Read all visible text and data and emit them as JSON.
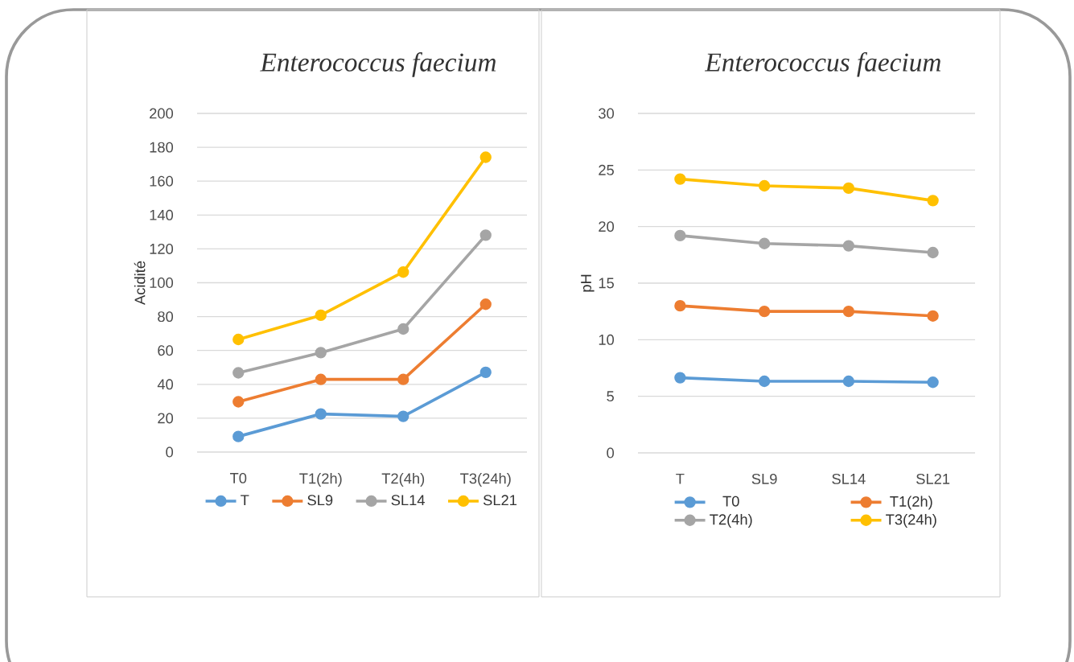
{
  "chart_data": [
    {
      "type": "line",
      "title": "Enterococcus faecium",
      "ylabel": "Acidité",
      "categories": [
        "T0",
        "T1(2h)",
        "T2(4h)",
        "T3(24h)"
      ],
      "series": [
        {
          "name": "T",
          "color": "#5b9bd5",
          "values": [
            9.2,
            22.5,
            21.1,
            47.1
          ]
        },
        {
          "name": "SL9",
          "color": "#ed7d31",
          "values": [
            29.7,
            42.9,
            42.9,
            87.3
          ]
        },
        {
          "name": "SL14",
          "color": "#a5a5a5",
          "values": [
            46.8,
            58.7,
            72.7,
            128.1
          ]
        },
        {
          "name": "SL21",
          "color": "#ffc000",
          "values": [
            66.5,
            80.8,
            106.3,
            174.1
          ]
        }
      ],
      "ylim": [
        0,
        200
      ],
      "yticks": [
        0,
        20,
        40,
        60,
        80,
        100,
        120,
        140,
        160,
        180,
        200
      ],
      "grid": "y",
      "legend": "bottom",
      "marker": "circle",
      "line_style": "solid"
    },
    {
      "type": "line",
      "title": "Enterococcus faecium",
      "ylabel": "pH",
      "categories": [
        "T",
        "SL9",
        "SL14",
        "SL21"
      ],
      "series": [
        {
          "name": "T0",
          "color": "#5b9bd5",
          "values": [
            6.64,
            6.33,
            6.33,
            6.24
          ]
        },
        {
          "name": "T1(2h)",
          "color": "#ed7d31",
          "values": [
            13.0,
            12.5,
            12.5,
            12.1
          ]
        },
        {
          "name": "T2(4h)",
          "color": "#a5a5a5",
          "values": [
            19.2,
            18.5,
            18.3,
            17.7
          ]
        },
        {
          "name": "T3(24h)",
          "color": "#ffc000",
          "values": [
            24.2,
            23.6,
            23.4,
            22.3
          ]
        }
      ],
      "ylim": [
        0,
        30
      ],
      "yticks": [
        0,
        5,
        10,
        15,
        20,
        25,
        30
      ],
      "grid": "y",
      "legend": "bottom",
      "marker": "circle",
      "line_style": "solid"
    }
  ]
}
